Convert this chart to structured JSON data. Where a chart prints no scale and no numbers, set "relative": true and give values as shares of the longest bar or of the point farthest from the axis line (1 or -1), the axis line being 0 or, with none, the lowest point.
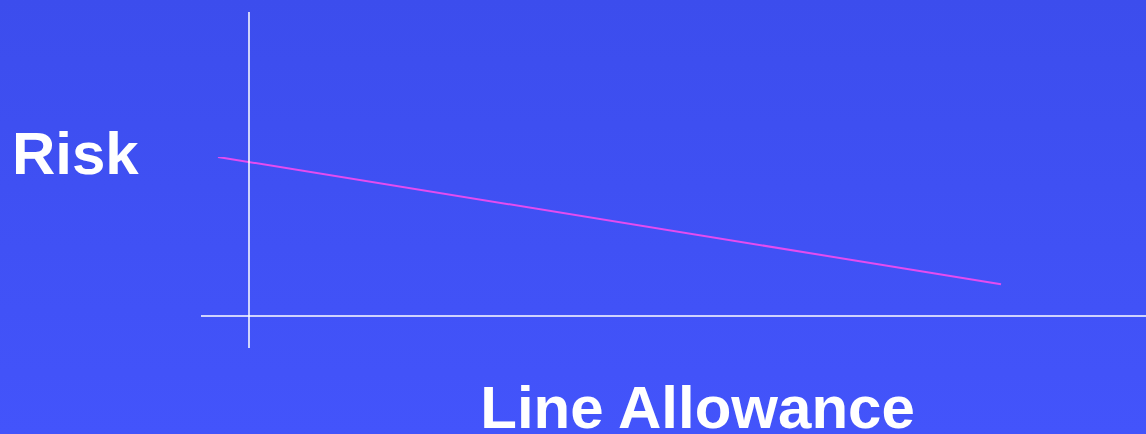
{
  "chart_data": {
    "type": "line",
    "ylabel": "Risk",
    "xlabel": "Line Allowance",
    "relative": true,
    "marker": "none",
    "categories": [
      null,
      null
    ],
    "series": [
      {
        "color": "#e44cf0",
        "values": [
          1,
          0.2
        ]
      }
    ]
  }
}
